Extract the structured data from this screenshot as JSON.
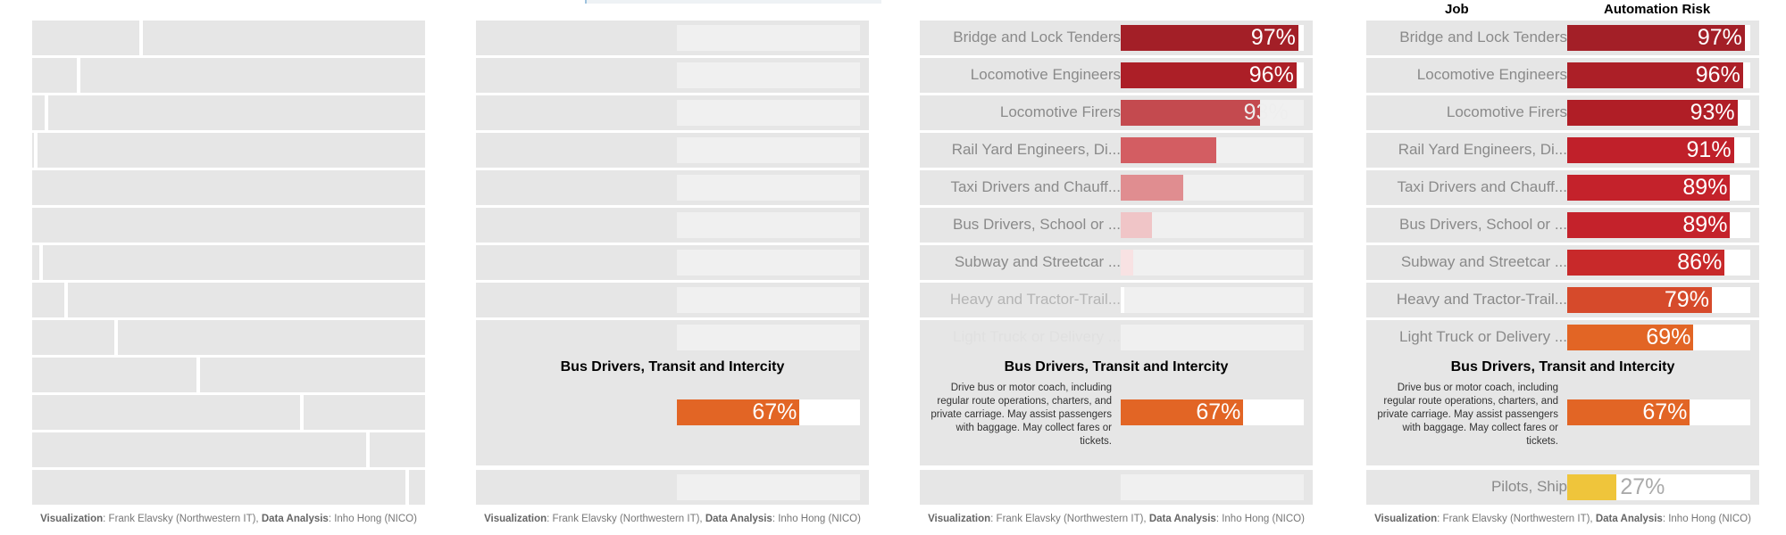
{
  "headers": {
    "job": "Job",
    "risk": "Automation Risk"
  },
  "focus": {
    "title": "Bus Drivers, Transit and Intercity",
    "description": "Drive bus or motor coach, including regular route operations, charters, and private carriage. May assist passengers with baggage. May collect fares or tickets.",
    "value_label": "67%",
    "value": 67,
    "color": "#e26525"
  },
  "footer": {
    "viz_label": "Visualization",
    "viz_credit": ": Frank Elavsky (Northwestern IT), ",
    "analysis_label": "Data Analysis",
    "analysis_credit": ": Inho Hong (NICO)"
  },
  "chart_data": {
    "type": "bar",
    "title": "",
    "xlabel": "Automation Risk",
    "ylabel": "Job",
    "xlim": [
      0,
      100
    ],
    "categories": [
      "Bridge and Lock Tenders",
      "Locomotive Engineers",
      "Locomotive Firers",
      "Rail Yard Engineers, Di...",
      "Taxi Drivers and Chauff...",
      "Bus Drivers, School or ...",
      "Subway and Streetcar ...",
      "Heavy and Tractor-Trail...",
      "Light Truck or Delivery ...",
      "Bus Drivers, Transit and Intercity",
      "Pilots, Ship"
    ],
    "values": [
      97,
      96,
      93,
      91,
      89,
      89,
      86,
      79,
      69,
      67,
      27
    ],
    "value_labels": [
      "97%",
      "96%",
      "93%",
      "91%",
      "89%",
      "89%",
      "86%",
      "79%",
      "69%",
      "67%",
      "27%"
    ],
    "colors": [
      "#a31f27",
      "#ac1f27",
      "#b01e26",
      "#c0202a",
      "#c4222b",
      "#c4222b",
      "#c8292a",
      "#d64a2b",
      "#e26525",
      "#e26525",
      "#efc53b"
    ]
  }
}
